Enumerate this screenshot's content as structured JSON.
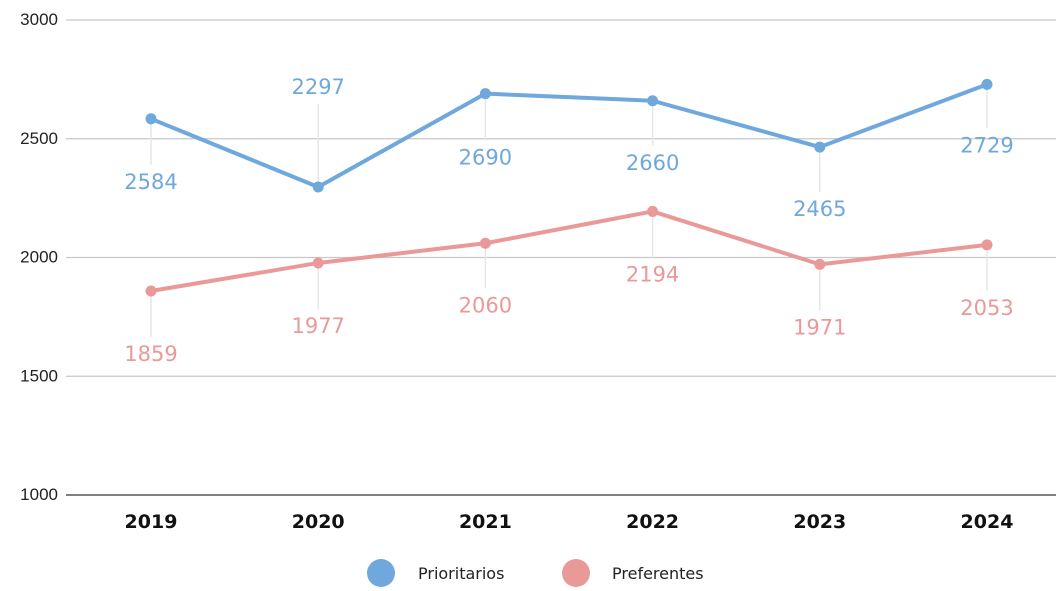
{
  "chart_data": {
    "type": "line",
    "title": "",
    "xlabel": "",
    "ylabel": "",
    "categories": [
      "2019",
      "2020",
      "2021",
      "2022",
      "2023",
      "2024"
    ],
    "ylim": [
      1000,
      3000
    ],
    "yticks": [
      1000,
      1500,
      2000,
      2500,
      3000
    ],
    "grid": true,
    "legend": "bottom-center",
    "series": [
      {
        "name": "Prioritarios",
        "color": "#6fa8dc",
        "values": [
          2584,
          2297,
          2690,
          2660,
          2465,
          2729
        ],
        "labels": [
          "2584",
          "2297",
          "2690",
          "2660",
          "2465",
          "2729"
        ]
      },
      {
        "name": "Preferentes",
        "color": "#ea9999",
        "values": [
          1859,
          1977,
          2060,
          2194,
          1971,
          2053
        ],
        "labels": [
          "1859",
          "1977",
          "2060",
          "2194",
          "1971",
          "2053"
        ]
      }
    ]
  }
}
